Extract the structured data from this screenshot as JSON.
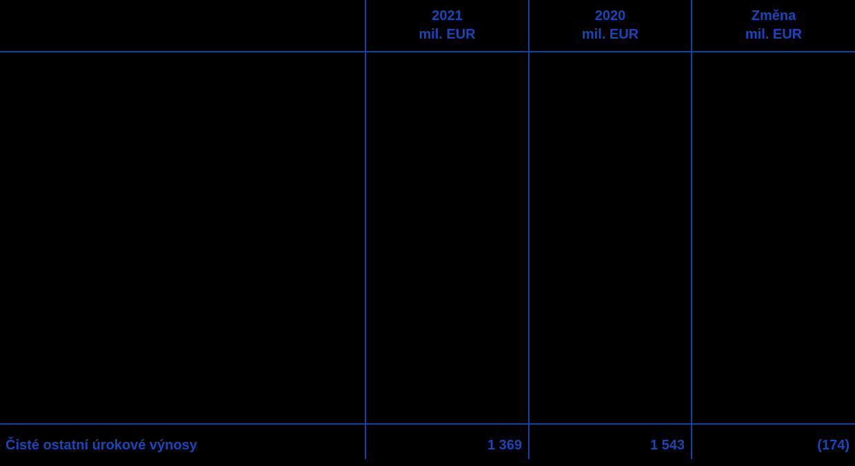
{
  "table": {
    "header": {
      "columns": [
        {
          "year": "2021",
          "unit": "mil. EUR"
        },
        {
          "year": "2020",
          "unit": "mil. EUR"
        },
        {
          "year": "Změna",
          "unit": "mil. EUR"
        }
      ]
    },
    "total_row": {
      "label": "Čisté ostatní úrokové výnosy",
      "values": [
        "1 369",
        "1 543",
        "(174)"
      ]
    }
  },
  "colors": {
    "background": "#000000",
    "text_blue": "#1747BE",
    "line_blue": "#1243AC"
  }
}
